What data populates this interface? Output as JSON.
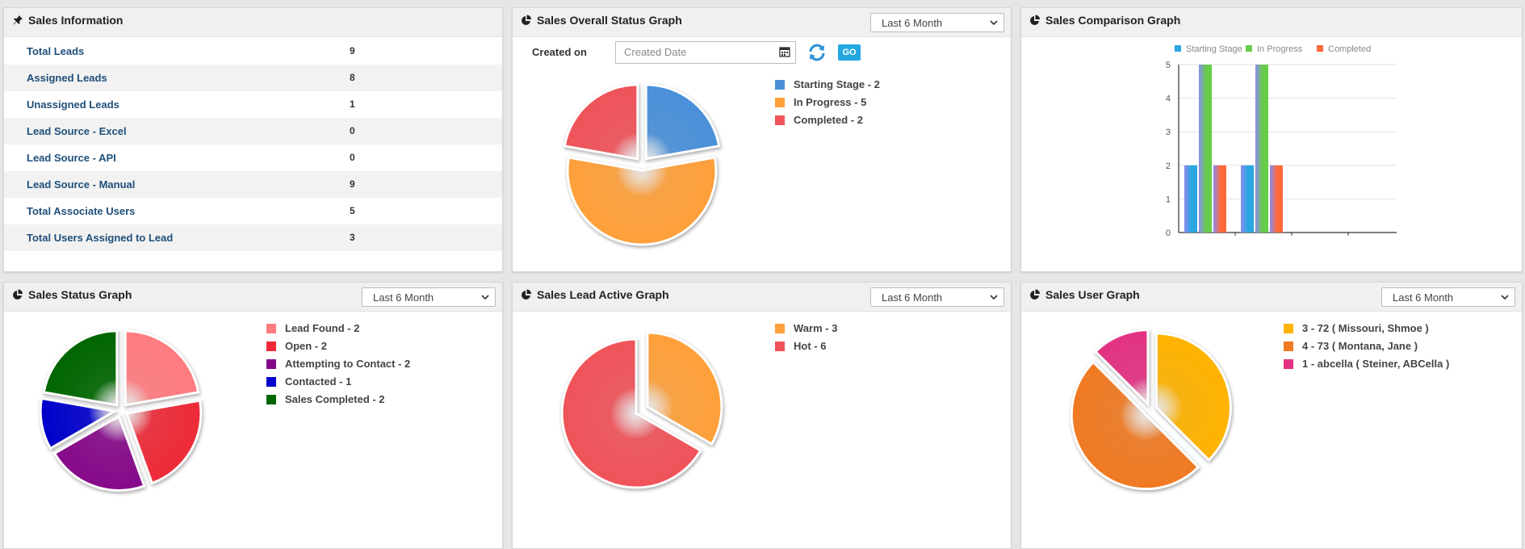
{
  "colors": {
    "link_label": "#1f4f7a",
    "go_button": "#23a7e1",
    "header_bg": "#f0f0f0"
  },
  "sales_info": {
    "title": "Sales Information",
    "icon": "pin-icon",
    "rows": [
      {
        "label": "Total Leads",
        "value": "9"
      },
      {
        "label": "Assigned Leads",
        "value": "8"
      },
      {
        "label": "Unassigned Leads",
        "value": "1"
      },
      {
        "label": "Lead Source - Excel",
        "value": "0"
      },
      {
        "label": "Lead Source - API",
        "value": "0"
      },
      {
        "label": "Lead Source - Manual",
        "value": "9"
      },
      {
        "label": "Total Associate Users",
        "value": "5"
      },
      {
        "label": "Total Users Assigned to Lead",
        "value": "3"
      }
    ]
  },
  "overall_status": {
    "title": "Sales Overall Status Graph",
    "icon": "pie-chart-icon",
    "dropdown": "Last 6 Month",
    "created_on_label": "Created on",
    "date_placeholder": "Created Date",
    "go_label": "GO",
    "legend": [
      {
        "text": "Starting Stage - 2",
        "color": "#4a90d9"
      },
      {
        "text": "In Progress - 5",
        "color": "#ffa03a"
      },
      {
        "text": "Completed - 2",
        "color": "#f0535a"
      }
    ]
  },
  "comparison": {
    "title": "Sales Comparison Graph",
    "icon": "pie-chart-icon"
  },
  "status_graph": {
    "title": "Sales Status Graph",
    "icon": "pie-chart-icon",
    "dropdown": "Last 6 Month",
    "legend": [
      {
        "text": "Lead Found - 2",
        "color": "#ff7c80"
      },
      {
        "text": "Open - 2",
        "color": "#ee2a38"
      },
      {
        "text": "Attempting to Contact - 2",
        "color": "#86098a"
      },
      {
        "text": "Contacted - 1",
        "color": "#0000cc"
      },
      {
        "text": "Sales Completed - 2",
        "color": "#006600"
      }
    ]
  },
  "lead_active": {
    "title": "Sales Lead Active Graph",
    "icon": "pie-chart-icon",
    "dropdown": "Last 6 Month",
    "legend": [
      {
        "text": "Warm - 3",
        "color": "#ffa03a"
      },
      {
        "text": "Hot - 6",
        "color": "#f0535a"
      }
    ]
  },
  "user_graph": {
    "title": "Sales User Graph",
    "icon": "pie-chart-icon",
    "dropdown": "Last 6 Month",
    "legend": [
      {
        "text": "3 - 72 ( Missouri, Shmoe )",
        "color": "#ffb300"
      },
      {
        "text": "4 - 73 ( Montana, Jane )",
        "color": "#f07a22"
      },
      {
        "text": "1 - abcella ( Steiner, ABCella )",
        "color": "#e33281"
      }
    ]
  },
  "chart_data": [
    {
      "type": "pie",
      "categories": [
        "Starting Stage",
        "In Progress",
        "Completed"
      ],
      "values": [
        2,
        5,
        2
      ],
      "colors": [
        "#4a90d9",
        "#ffa03a",
        "#f0535a"
      ]
    },
    {
      "type": "bar",
      "series": [
        {
          "name": "Starting Stage",
          "values": [
            2,
            2
          ],
          "color": "#2aa7e0"
        },
        {
          "name": "In Progress",
          "values": [
            5,
            5
          ],
          "color": "#66cc4a"
        },
        {
          "name": "Completed",
          "values": [
            2,
            2
          ],
          "color": "#ff6a3a"
        }
      ],
      "ylim": [
        0,
        5
      ],
      "yticks": [
        "0",
        "1",
        "2",
        "3",
        "4",
        "5"
      ],
      "grid": true,
      "legend": "top"
    },
    {
      "type": "pie",
      "categories": [
        "Lead Found",
        "Open",
        "Attempting to Contact",
        "Contacted",
        "Sales Completed"
      ],
      "values": [
        2,
        2,
        2,
        1,
        2
      ],
      "colors": [
        "#ff7c80",
        "#ee2a38",
        "#86098a",
        "#0000cc",
        "#006600"
      ]
    },
    {
      "type": "pie",
      "categories": [
        "Warm",
        "Hot"
      ],
      "values": [
        3,
        6
      ],
      "colors": [
        "#ffa03a",
        "#f0535a"
      ]
    },
    {
      "type": "pie",
      "categories": [
        "3 - 72 ( Missouri, Shmoe )",
        "4 - 73 ( Montana, Jane )",
        "1 - abcella ( Steiner, ABCella )"
      ],
      "values": [
        3,
        4,
        1
      ],
      "colors": [
        "#ffb300",
        "#f07a22",
        "#e33281"
      ]
    }
  ]
}
